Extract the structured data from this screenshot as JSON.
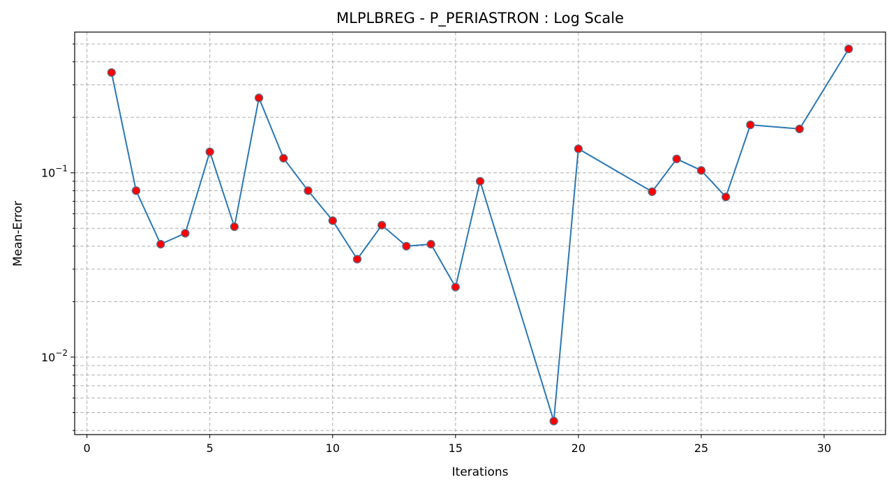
{
  "chart_data": {
    "type": "line",
    "title": "MLPLBREG - P_PERIASTRON : Log Scale",
    "xlabel": "Iterations",
    "ylabel": "Mean-Error",
    "yscale": "log",
    "xlim": [
      -0.5,
      32.5
    ],
    "ylim": [
      0.0038,
      0.58
    ],
    "grid": true,
    "x_ticks": [
      0,
      5,
      10,
      15,
      20,
      25,
      30
    ],
    "y_major_ticks": [
      {
        "value": 0.01,
        "base": "10",
        "exp": "−2"
      },
      {
        "value": 0.1,
        "base": "10",
        "exp": "−1"
      }
    ],
    "y_minor_ticks": [
      0.004,
      0.005,
      0.006,
      0.007,
      0.008,
      0.009,
      0.02,
      0.03,
      0.04,
      0.05,
      0.06,
      0.07,
      0.08,
      0.09,
      0.2,
      0.3,
      0.4,
      0.5
    ],
    "line_color": "#2a77b4",
    "marker_color": "#ff0000",
    "marker_edge_color": "#5a6f8a",
    "series": [
      {
        "name": "Mean-Error",
        "x": [
          1,
          2,
          3,
          4,
          5,
          6,
          7,
          8,
          9,
          10,
          11,
          12,
          13,
          14,
          15,
          16,
          19,
          20,
          23,
          24,
          25,
          26,
          27,
          29,
          31
        ],
        "values": [
          0.35,
          0.08,
          0.041,
          0.047,
          0.13,
          0.051,
          0.255,
          0.12,
          0.08,
          0.055,
          0.034,
          0.052,
          0.04,
          0.041,
          0.024,
          0.09,
          0.0045,
          0.135,
          0.079,
          0.119,
          0.103,
          0.074,
          0.182,
          0.173,
          0.47
        ]
      }
    ]
  }
}
